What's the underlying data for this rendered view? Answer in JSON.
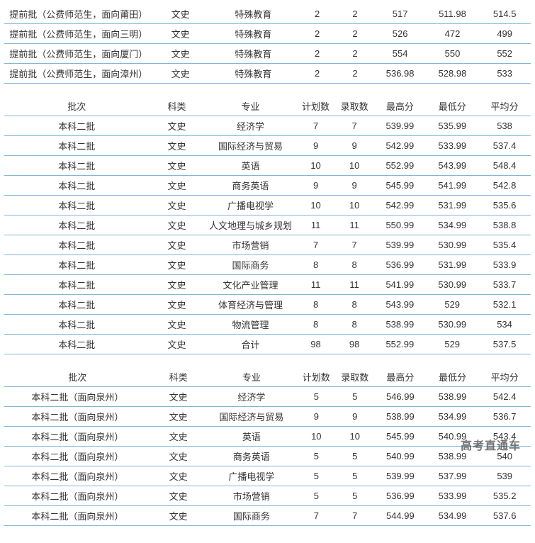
{
  "watermark": "高考直通车",
  "colClasses": [
    "c0",
    "c1",
    "c2",
    "c3",
    "c4",
    "c5",
    "c6",
    "c7"
  ],
  "headers": [
    "批次",
    "科类",
    "专业",
    "计划数",
    "录取数",
    "最高分",
    "最低分",
    "平均分"
  ],
  "table1": {
    "rows": [
      [
        "提前批（公费师范生，面向莆田）",
        "文史",
        "特殊教育",
        "2",
        "2",
        "517",
        "511.98",
        "514.5"
      ],
      [
        "提前批（公费师范生，面向三明）",
        "文史",
        "特殊教育",
        "2",
        "2",
        "526",
        "472",
        "499"
      ],
      [
        "提前批（公费师范生，面向厦门）",
        "文史",
        "特殊教育",
        "2",
        "2",
        "554",
        "550",
        "552"
      ],
      [
        "提前批（公费师范生，面向漳州）",
        "文史",
        "特殊教育",
        "2",
        "2",
        "536.98",
        "528.98",
        "533"
      ]
    ]
  },
  "table2": {
    "rows": [
      [
        "本科二批",
        "文史",
        "经济学",
        "7",
        "7",
        "539.99",
        "535.99",
        "538"
      ],
      [
        "本科二批",
        "文史",
        "国际经济与贸易",
        "9",
        "9",
        "542.99",
        "533.99",
        "537.4"
      ],
      [
        "本科二批",
        "文史",
        "英语",
        "10",
        "10",
        "552.99",
        "543.99",
        "548.4"
      ],
      [
        "本科二批",
        "文史",
        "商务英语",
        "9",
        "9",
        "545.99",
        "541.99",
        "542.8"
      ],
      [
        "本科二批",
        "文史",
        "广播电视学",
        "10",
        "10",
        "542.99",
        "531.99",
        "535.6"
      ],
      [
        "本科二批",
        "文史",
        "人文地理与城乡规划",
        "11",
        "11",
        "550.99",
        "534.99",
        "538.8"
      ],
      [
        "本科二批",
        "文史",
        "市场营销",
        "7",
        "7",
        "539.99",
        "530.99",
        "535.4"
      ],
      [
        "本科二批",
        "文史",
        "国际商务",
        "8",
        "8",
        "536.99",
        "531.99",
        "533.9"
      ],
      [
        "本科二批",
        "文史",
        "文化产业管理",
        "11",
        "11",
        "541.99",
        "530.99",
        "533.7"
      ],
      [
        "本科二批",
        "文史",
        "体育经济与管理",
        "8",
        "8",
        "543.99",
        "529",
        "532.1"
      ],
      [
        "本科二批",
        "文史",
        "物流管理",
        "8",
        "8",
        "538.99",
        "530.99",
        "534"
      ],
      [
        "本科二批",
        "文史",
        "合计",
        "98",
        "98",
        "552.99",
        "529",
        "537.5"
      ]
    ]
  },
  "table3": {
    "rows": [
      [
        "本科二批（面向泉州）",
        "文史",
        "经济学",
        "5",
        "5",
        "546.99",
        "538.99",
        "542.4"
      ],
      [
        "本科二批（面向泉州）",
        "文史",
        "国际经济与贸易",
        "9",
        "9",
        "538.99",
        "534.99",
        "536.7"
      ],
      [
        "本科二批（面向泉州）",
        "文史",
        "英语",
        "10",
        "10",
        "545.99",
        "540.99",
        "543.4"
      ],
      [
        "本科二批（面向泉州）",
        "文史",
        "商务英语",
        "5",
        "5",
        "540.99",
        "538.99",
        "540"
      ],
      [
        "本科二批（面向泉州）",
        "文史",
        "广播电视学",
        "5",
        "5",
        "539.99",
        "537.99",
        "539"
      ],
      [
        "本科二批（面向泉州）",
        "文史",
        "市场营销",
        "5",
        "5",
        "536.99",
        "533.99",
        "535.2"
      ],
      [
        "本科二批（面向泉州）",
        "文史",
        "国际商务",
        "7",
        "7",
        "544.99",
        "534.99",
        "537.6"
      ]
    ]
  }
}
